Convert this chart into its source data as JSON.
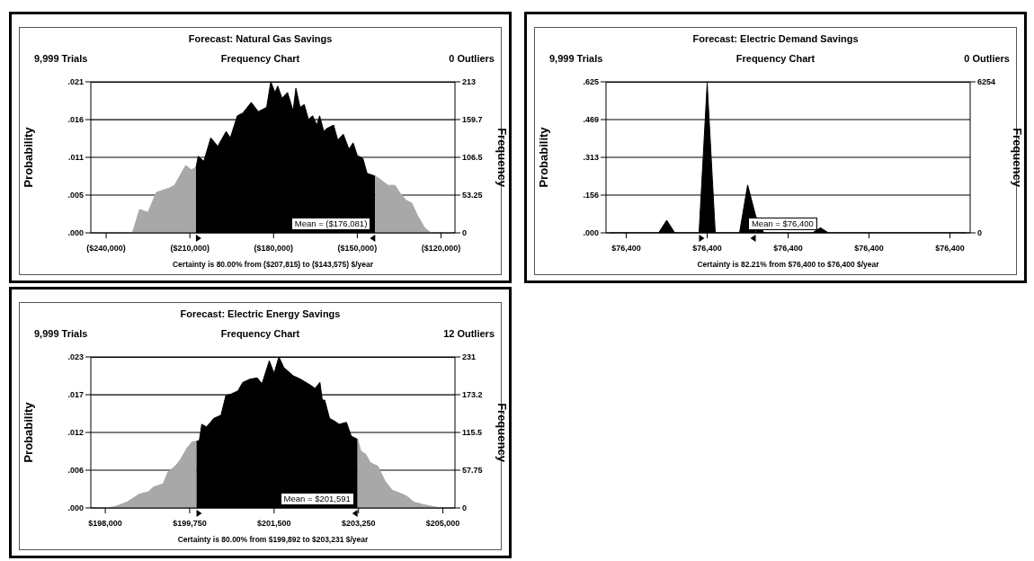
{
  "chart_data": [
    {
      "type": "area",
      "title": "Forecast: Natural Gas Savings",
      "ylabel": "Probability",
      "y2label": "Frequency",
      "annotations": [
        "9,999 Trials",
        "Frequency Chart",
        "0 Outliers",
        "Mean = ($176,081)",
        "Certainty is 80.00% from ($207,815) to ($143,575) $/year"
      ],
      "series": [
        {
          "color": "#a8a8a8",
          "axis": "y2",
          "x": [
            -245000,
            -232000,
            -230500,
            -228000,
            -225000,
            -222000,
            -217500,
            -215500,
            -211500,
            -209500,
            -207815
          ],
          "values": [
            0,
            0,
            1,
            33,
            29,
            57,
            63,
            67,
            95,
            89,
            92
          ]
        },
        {
          "color": "#000000",
          "axis": "y2",
          "x": [
            -207815,
            -207000,
            -205000,
            -202500,
            -200000,
            -197000,
            -195500,
            -193000,
            -191000,
            -188000,
            -185500,
            -182500,
            -181000,
            -179500,
            -178500,
            -177000,
            -175000,
            -173000,
            -172000,
            -170500,
            -169000,
            -167500,
            -166000,
            -164500,
            -163500,
            -162000,
            -161000,
            -158500,
            -157000,
            -155000,
            -153000,
            -151500,
            -150000,
            -148000,
            -146500,
            -143575
          ],
          "values": [
            92,
            108,
            101,
            134,
            122,
            143,
            134,
            165,
            169,
            184,
            171,
            177,
            213,
            198,
            207,
            190,
            198,
            172,
            204,
            177,
            181,
            160,
            165,
            152,
            165,
            143,
            147,
            152,
            131,
            139,
            118,
            127,
            109,
            105,
            84,
            80
          ]
        },
        {
          "color": "#a8a8a8",
          "axis": "y2",
          "x": [
            -143575,
            -142000,
            -139000,
            -136500,
            -134500,
            -132500,
            -130500,
            -128500,
            -126000,
            -124000,
            -122000,
            -116000
          ],
          "values": [
            80,
            76,
            67,
            67,
            55,
            46,
            42,
            25,
            8,
            1,
            0,
            0
          ]
        }
      ],
      "xlim": [
        -245500,
        -115000
      ],
      "xticks": [
        {
          "value": -240000,
          "label": "($240,000)"
        },
        {
          "value": -210000,
          "label": "($210,000)"
        },
        {
          "value": -180000,
          "label": "($180,000)"
        },
        {
          "value": -150000,
          "label": "($150,000)"
        },
        {
          "value": -120000,
          "label": "($120,000)"
        }
      ],
      "ylim": [
        0,
        0.0213
      ],
      "yticks": [
        {
          "value": 0,
          "label": ".000"
        },
        {
          "value": 0.005325,
          "label": ".005"
        },
        {
          "value": 0.01065,
          "label": ".011"
        },
        {
          "value": 0.01597,
          "label": ".016"
        },
        {
          "value": 0.0213,
          "label": ".021"
        }
      ],
      "y2lim": [
        0,
        213
      ],
      "y2ticks": [
        0,
        53.25,
        106.5,
        {
          "value": 159.75,
          "label": "159.7"
        },
        213
      ],
      "grid": "y"
    },
    {
      "type": "area",
      "title": "Forecast: Electric Demand Savings",
      "ylabel": "Probability",
      "y2label": "Frequency",
      "annotations": [
        "9,999 Trials",
        "Frequency Chart",
        "0 Outliers",
        "Mean = $76,400",
        "Certainty is 82.21% from $76,400 to $76,400 $/year"
      ],
      "categories": [
        null,
        null,
        "$76,400",
        null,
        null,
        null,
        null,
        null,
        null,
        null,
        null,
        null,
        "$76,400",
        null,
        null,
        null,
        null,
        null,
        null,
        null,
        null,
        null,
        "$76,400",
        null,
        null,
        null,
        null,
        null,
        null,
        null,
        null,
        null,
        "$76,400",
        null,
        null,
        null,
        null,
        null,
        null,
        null,
        null,
        null,
        "$76,400",
        null,
        null
      ],
      "series": [
        {
          "color": "#000000",
          "values": [
            0,
            0,
            0,
            0,
            0,
            0,
            0,
            0.052,
            0,
            0,
            0,
            0,
            null,
            null,
            null,
            null,
            null,
            null,
            null,
            null,
            null,
            null,
            null,
            null,
            null,
            null,
            null,
            null,
            null,
            null,
            null,
            null,
            null,
            null,
            null,
            null,
            null,
            null,
            null,
            null,
            null,
            null,
            null,
            null,
            null
          ]
        },
        {
          "color": "#000000",
          "values": [
            null,
            null,
            null,
            null,
            null,
            null,
            null,
            null,
            null,
            null,
            null,
            0,
            0.62,
            0,
            0,
            0,
            0,
            0.198,
            0.07,
            null,
            null,
            null,
            null,
            null,
            null,
            null,
            null,
            null,
            null,
            null,
            null,
            null,
            null,
            null,
            null,
            null,
            null,
            null,
            null,
            null,
            null,
            null,
            null,
            null,
            null
          ]
        },
        {
          "color": "#000000",
          "values": [
            null,
            null,
            null,
            null,
            null,
            null,
            null,
            null,
            null,
            null,
            null,
            null,
            null,
            null,
            null,
            null,
            null,
            null,
            0.07,
            0,
            0,
            0,
            0,
            0,
            0,
            0,
            0.021,
            0,
            0,
            0,
            0,
            0,
            0,
            0,
            0,
            0,
            0,
            0,
            0,
            0,
            0,
            0,
            0,
            0,
            0
          ]
        }
      ],
      "ylim": [
        0,
        0.6254
      ],
      "yticks": [
        {
          "value": 0,
          "label": ".000"
        },
        {
          "value": 0.15635,
          "label": ".156"
        },
        {
          "value": 0.3127,
          "label": ".313"
        },
        {
          "value": 0.46905,
          "label": ".469"
        },
        {
          "value": 0.6254,
          "label": ".625"
        }
      ],
      "y2lim": [
        0,
        6254
      ],
      "y2ticks": [
        0,
        6254
      ],
      "grid": "y"
    },
    {
      "type": "area",
      "title": "Forecast: Electric Energy Savings",
      "ylabel": "Probability",
      "y2label": "Frequency",
      "annotations": [
        "9,999 Trials",
        "Frequency Chart",
        "12 Outliers",
        "Mean = $201,591",
        "Certainty is 80.00% from $199,892 to $203,231 $/year"
      ],
      "series": [
        {
          "color": "#a8a8a8",
          "axis": "y2",
          "x": [
            197800,
            198000,
            198200,
            198450,
            198700,
            198900,
            199000,
            199200,
            199300,
            199450,
            199550,
            199700,
            199800,
            199892
          ],
          "values": [
            0,
            0,
            2,
            9,
            21,
            25,
            32,
            37,
            55,
            64,
            73,
            92,
            101,
            102
          ]
        },
        {
          "color": "#000000",
          "axis": "y2",
          "x": [
            199892,
            199950,
            200000,
            200100,
            200250,
            200400,
            200500,
            200600,
            200750,
            200850,
            201000,
            201150,
            201250,
            201400,
            201500,
            201600,
            201700,
            201900,
            202050,
            202250,
            202350,
            202450,
            202500,
            202550,
            202650,
            202750,
            202850,
            203000,
            203100,
            203231
          ],
          "values": [
            102,
            103,
            128,
            124,
            137,
            142,
            172,
            174,
            179,
            192,
            197,
            199,
            190,
            225,
            206,
            231,
            215,
            202,
            197,
            188,
            183,
            192,
            165,
            165,
            137,
            133,
            128,
            131,
            110,
            105
          ]
        },
        {
          "color": "#a8a8a8",
          "axis": "y2",
          "x": [
            203231,
            203300,
            203400,
            203500,
            203650,
            203800,
            203950,
            204100,
            204250,
            204400,
            204600,
            204800,
            204950,
            205200
          ],
          "values": [
            105,
            87,
            82,
            69,
            64,
            41,
            27,
            23,
            18,
            9,
            5,
            2,
            0,
            0
          ]
        }
      ],
      "xlim": [
        197700,
        205250
      ],
      "xticks": [
        {
          "value": 198000,
          "label": "$198,000"
        },
        {
          "value": 199750,
          "label": "$199,750"
        },
        {
          "value": 201500,
          "label": "$201,500"
        },
        {
          "value": 203250,
          "label": "$203,250"
        },
        {
          "value": 205000,
          "label": "$205,000"
        }
      ],
      "ylim": [
        0,
        0.0231
      ],
      "yticks": [
        {
          "value": 0,
          "label": ".000"
        },
        {
          "value": 0.005775,
          "label": ".006"
        },
        {
          "value": 0.01155,
          "label": ".012"
        },
        {
          "value": 0.01732,
          "label": ".017"
        },
        {
          "value": 0.0231,
          "label": ".023"
        }
      ],
      "y2lim": [
        0,
        231
      ],
      "y2ticks": [
        0,
        57.75,
        115.5,
        {
          "value": 173.25,
          "label": "173.2"
        },
        231
      ],
      "grid": "y"
    }
  ]
}
